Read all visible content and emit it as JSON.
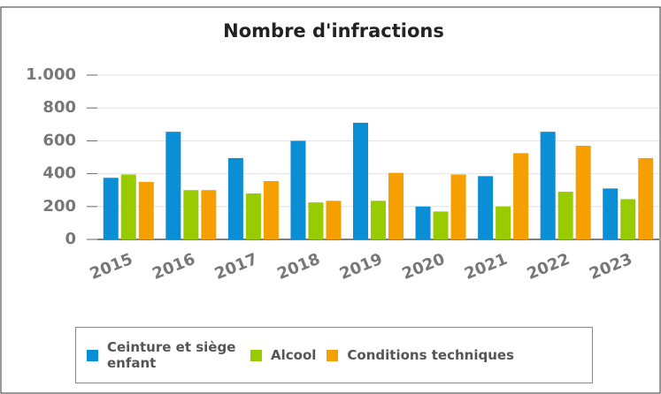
{
  "chart_data": {
    "type": "bar",
    "title": "Nombre d'infractions",
    "categories": [
      "2015",
      "2016",
      "2017",
      "2018",
      "2019",
      "2020",
      "2021",
      "2022",
      "2023"
    ],
    "series": [
      {
        "name": "Ceinture et siège enfant",
        "color": "#0a8fd6",
        "values": [
          375,
          655,
          495,
          600,
          710,
          200,
          385,
          655,
          310
        ]
      },
      {
        "name": "Alcool",
        "color": "#99cc00",
        "values": [
          395,
          300,
          280,
          225,
          235,
          170,
          200,
          290,
          245
        ]
      },
      {
        "name": "Conditions techniques",
        "color": "#f5a000",
        "values": [
          350,
          300,
          355,
          235,
          405,
          395,
          525,
          570,
          495
        ]
      }
    ],
    "ylim": [
      0,
      1000
    ],
    "yticks": [
      0,
      200,
      400,
      600,
      800,
      {
        "value": 1000,
        "label": "1.000"
      }
    ],
    "grid": true,
    "legend": "bottom"
  }
}
